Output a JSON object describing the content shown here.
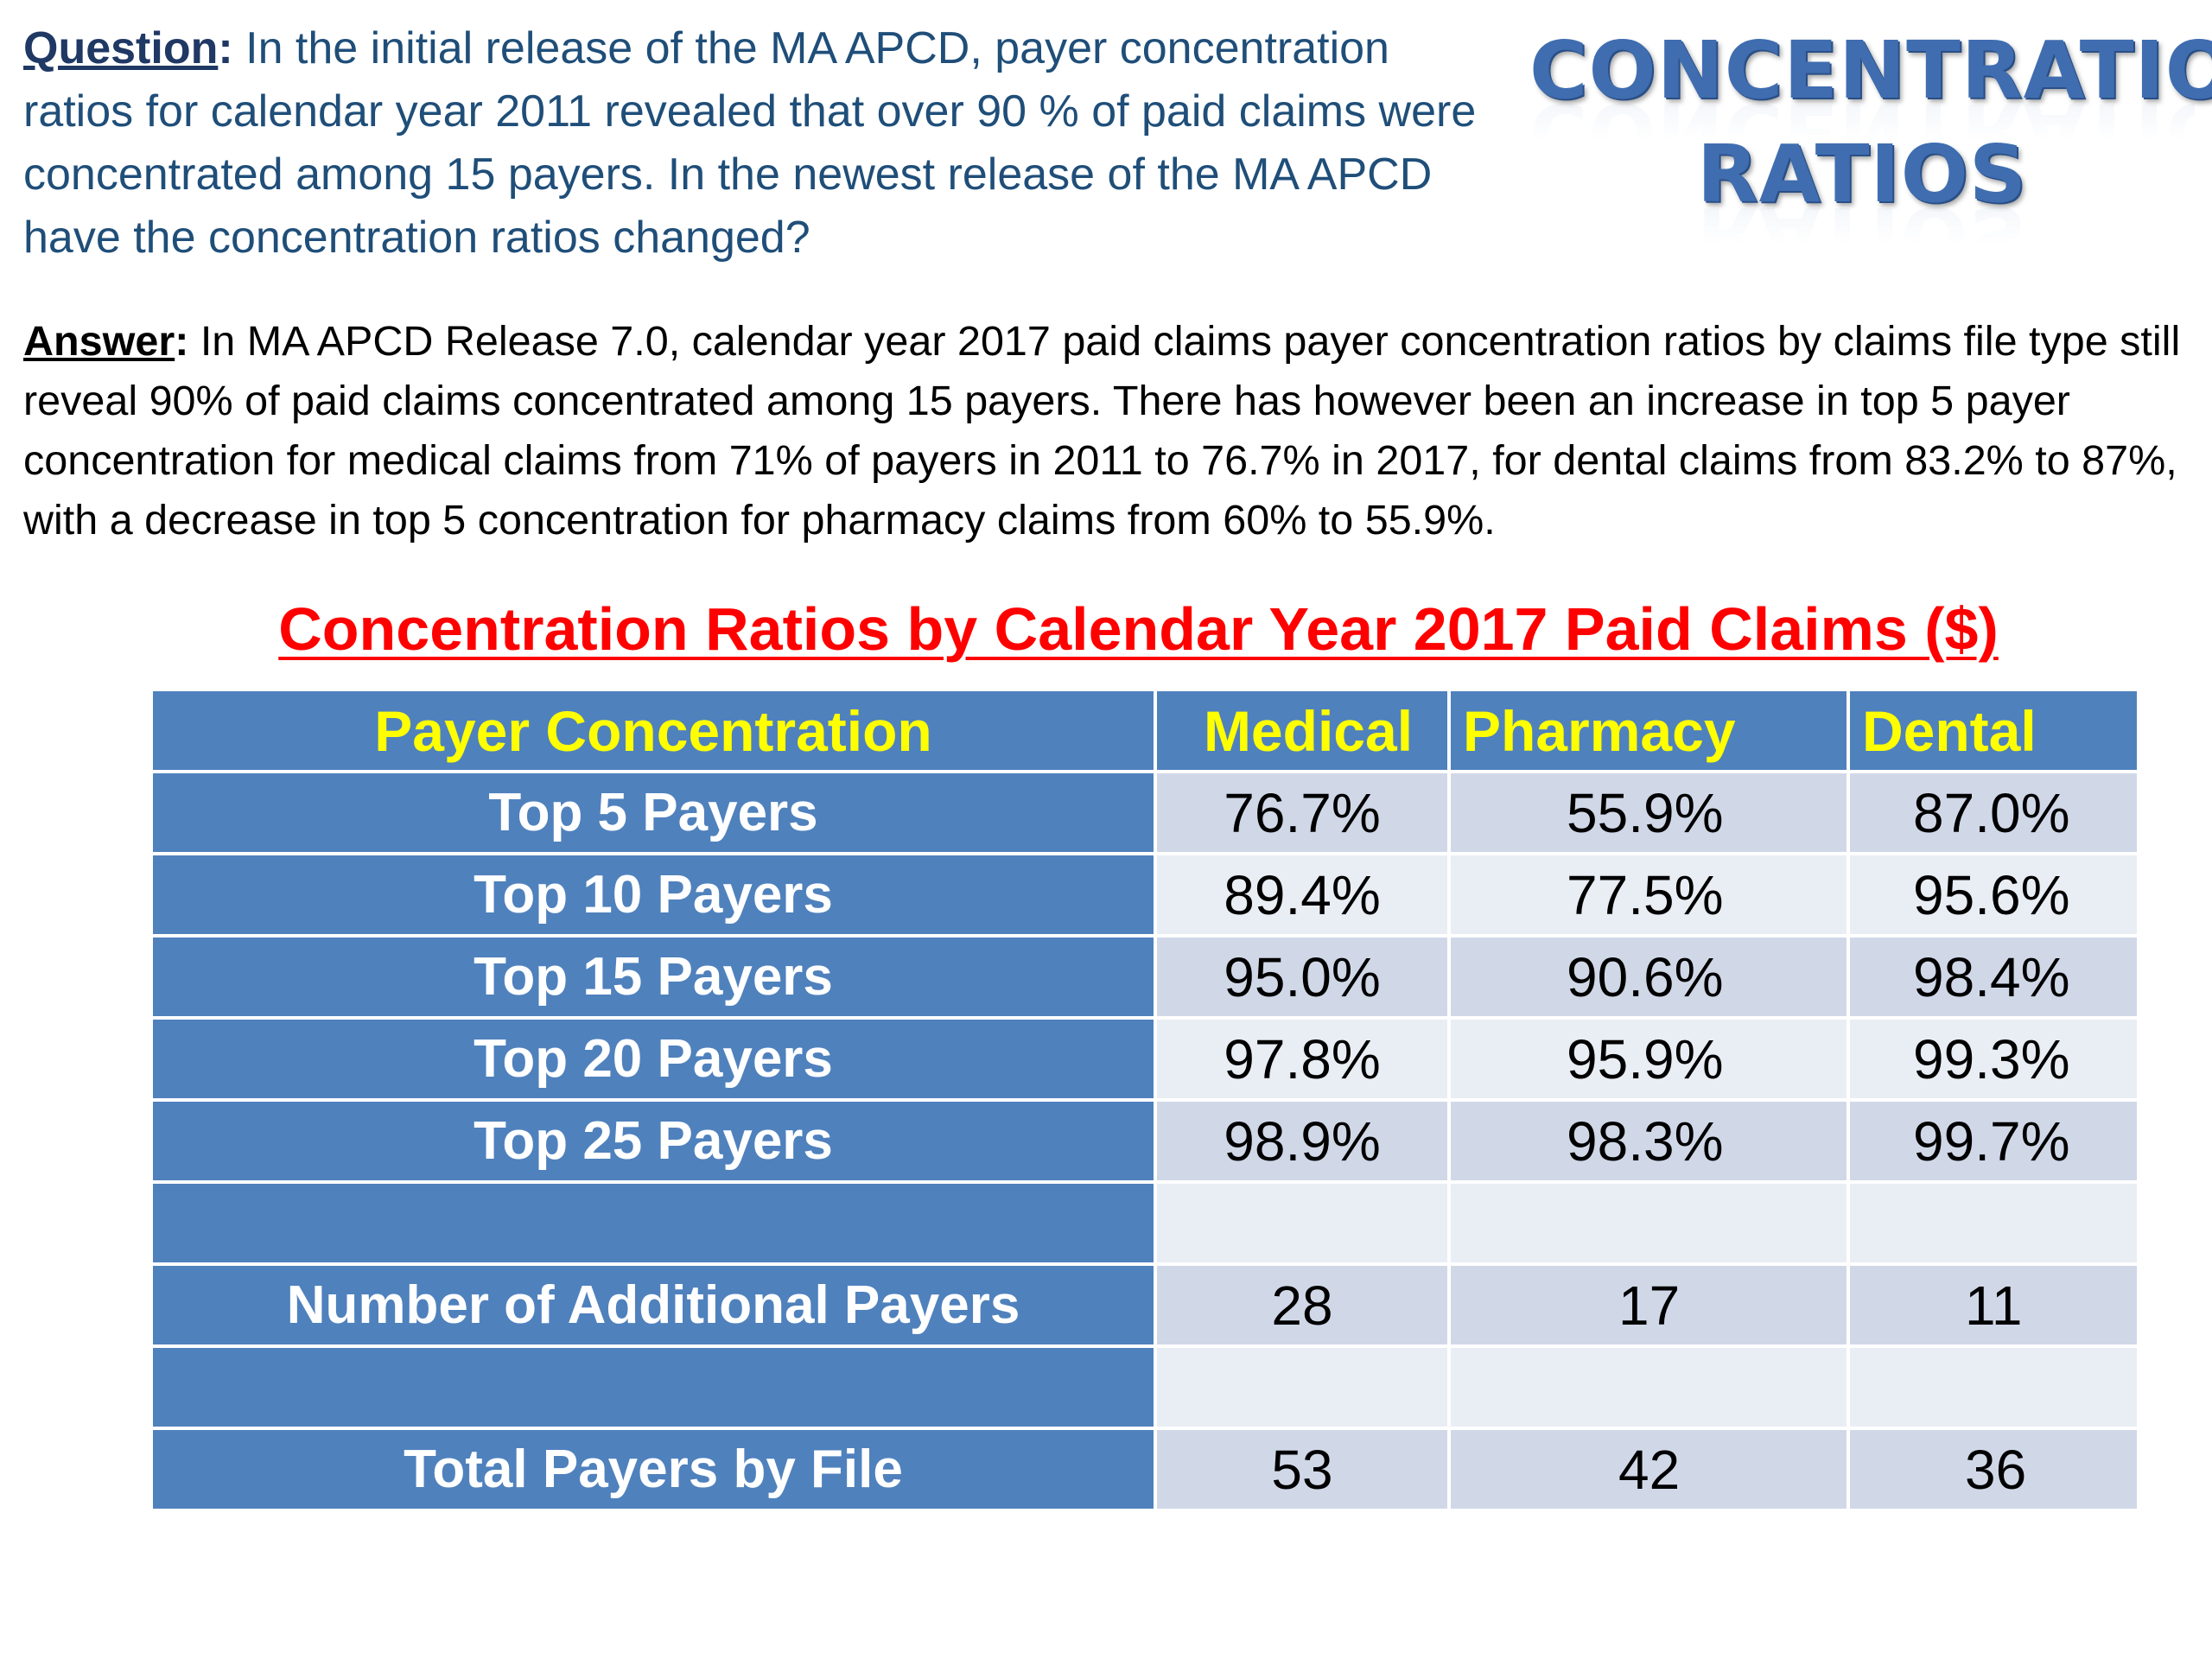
{
  "question": {
    "label": "Question",
    "colon": ":",
    "text": " In the initial release of the MA APCD, payer concentration ratios for calendar year 2011 revealed that over 90 % of paid claims were concentrated among 15 payers. In the newest release of the MA APCD have the concentration ratios changed?"
  },
  "heading": {
    "line1": "CONCENTRATION",
    "line2": "RATIOS"
  },
  "answer": {
    "label": "Answer",
    "colon": ":",
    "text": " In MA APCD Release 7.0, calendar year 2017 paid claims payer concentration ratios by claims file type still reveal 90% of paid claims concentrated among 15 payers.  There has however been an increase in top 5 payer concentration for medical claims from 71% of payers in 2011 to 76.7% in 2017, for dental claims from 83.2% to 87%, with a decrease in top 5 concentration for pharmacy claims from 60% to 55.9%."
  },
  "table": {
    "title": "Concentration Ratios by Calendar Year 2017 Paid Claims ($)",
    "headers": [
      "Payer Concentration",
      "Medical",
      "Pharmacy",
      "Dental"
    ],
    "rows": [
      {
        "label": "Top 5 Payers",
        "medical": "76.7%",
        "pharmacy": "55.9%",
        "dental": "87.0%"
      },
      {
        "label": "Top 10 Payers",
        "medical": "89.4%",
        "pharmacy": "77.5%",
        "dental": "95.6%"
      },
      {
        "label": "Top 15 Payers",
        "medical": "95.0%",
        "pharmacy": "90.6%",
        "dental": "98.4%"
      },
      {
        "label": "Top 20 Payers",
        "medical": "97.8%",
        "pharmacy": "95.9%",
        "dental": "99.3%"
      },
      {
        "label": "Top 25 Payers",
        "medical": "98.9%",
        "pharmacy": "98.3%",
        "dental": "99.7%"
      },
      {
        "label": "",
        "medical": "",
        "pharmacy": "",
        "dental": ""
      },
      {
        "label": "Number of Additional Payers",
        "medical": "28",
        "pharmacy": "17",
        "dental": "11"
      },
      {
        "label": "",
        "medical": "",
        "pharmacy": "",
        "dental": ""
      },
      {
        "label": "Total Payers by File",
        "medical": "53",
        "pharmacy": "42",
        "dental": "36"
      }
    ]
  },
  "colors": {
    "header_blue": "#4f81bd",
    "header_text": "#ffff00",
    "title_red": "#ff0000",
    "question_text": "#1f4e79",
    "heading_blue": "#3f6db0",
    "cell_dark": "#d0d8e8",
    "cell_light": "#e9edf4"
  }
}
